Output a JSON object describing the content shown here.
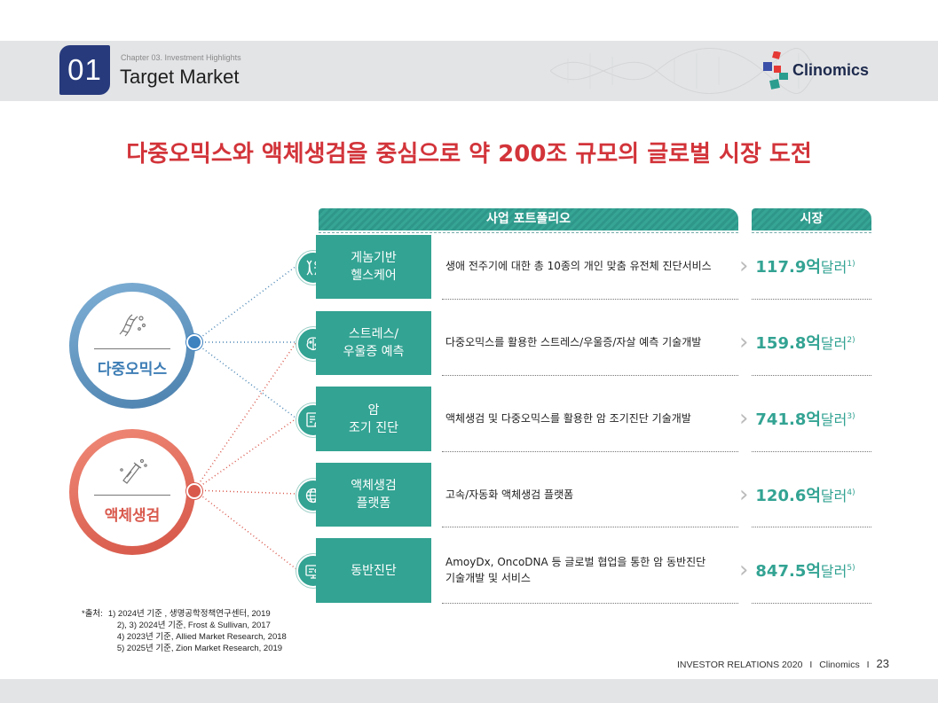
{
  "header": {
    "number": "01",
    "chapter": "Chapter 03. Investment Highlights",
    "title": "Target Market",
    "brand": "Clinomics"
  },
  "main_title": "다중오믹스와 액체생검을 중심으로 약 200조 규모의 글로벌 시장 도전",
  "columns": {
    "portfolio": "사업 포트폴리오",
    "market": "시장"
  },
  "categories": [
    {
      "label": "다중오믹스",
      "color": "#5f95bd",
      "icon": "dna-icon"
    },
    {
      "label": "액체생검",
      "color": "#e0685a",
      "icon": "test-tube-icon"
    }
  ],
  "rows": [
    {
      "name": "게놈기반\n헬스케어",
      "icon": "dna-person-icon",
      "desc": "생애 전주기에 대한 총 10종의 개인 맞춤 유전체 진단서비스",
      "value": "117.9억",
      "unit": "달러",
      "note": "1)"
    },
    {
      "name": "스트레스/\n우울증 예측",
      "icon": "brain-icon",
      "desc": "다중오믹스를 활용한 스트레스/우울증/자살 예측 기술개발",
      "value": "159.8억",
      "unit": "달러",
      "note": "2)"
    },
    {
      "name": "암\n조기 진단",
      "icon": "report-icon",
      "desc": "액체생검 및 다중오믹스를 활용한 암 조기진단 기술개발",
      "value": "741.8억",
      "unit": "달러",
      "note": "3)"
    },
    {
      "name": "액체생검\n플랫폼",
      "icon": "globe-icon",
      "desc": "고속/자동화 액체생검 플랫폼",
      "value": "120.6억",
      "unit": "달러",
      "note": "4)"
    },
    {
      "name": "동반진단",
      "icon": "monitor-icon",
      "desc": "AmoyDx, OncoDNA 등 글로벌 협업을 통한 암 동반진단\n기술개발 및 서비스",
      "value": "847.5억",
      "unit": "달러",
      "note": "5)"
    }
  ],
  "footnote": {
    "prefix": "*출처:",
    "lines": [
      "1) 2024년 기준 , 생명공학정책연구센터, 2019",
      "2), 3) 2024년 기준, Frost & Sullivan, 2017",
      "4) 2023년 기준, Allied Market Research, 2018",
      "5) 2025년 기준, Zion Market Research, 2019"
    ]
  },
  "footer": {
    "left": "INVESTOR RELATIONS 2020",
    "brand": "Clinomics",
    "page": "23"
  }
}
